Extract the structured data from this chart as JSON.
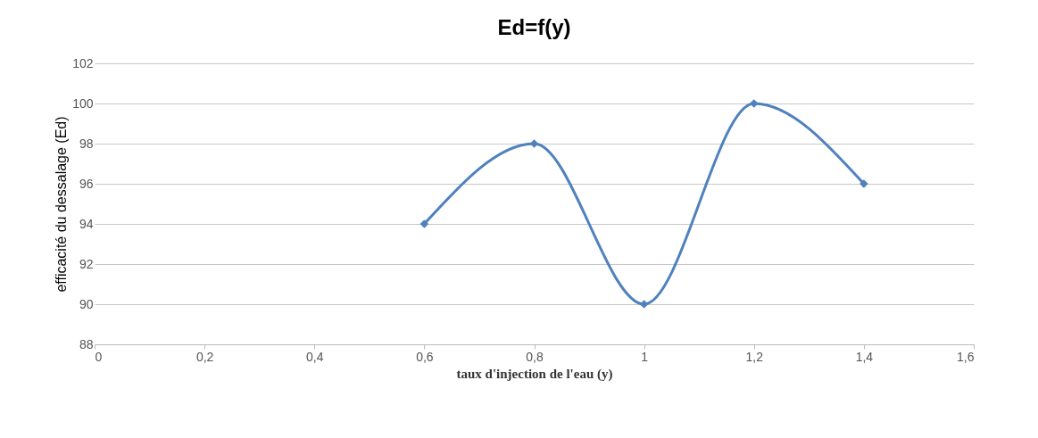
{
  "chart_data": {
    "type": "line",
    "title": "Ed=f(y)",
    "xlabel": "taux d'injection de l'eau (y)",
    "ylabel": "efficacité du dessalage (Ed)",
    "x": [
      0.6,
      0.8,
      1,
      1.2,
      1.4
    ],
    "series": [
      {
        "color": "#4f81bd",
        "values": [
          94,
          98,
          90,
          100,
          96
        ]
      }
    ],
    "xlim": [
      0,
      1.6
    ],
    "xticks": [
      0,
      {
        "value": 0.2,
        "label": "0,2"
      },
      {
        "value": 0.4,
        "label": "0,4"
      },
      {
        "value": 0.6,
        "label": "0,6"
      },
      {
        "value": 0.8,
        "label": "0,8"
      },
      1,
      {
        "value": 1.2,
        "label": "1,2"
      },
      {
        "value": 1.4,
        "label": "1,4"
      },
      {
        "value": 1.6,
        "label": "1,6"
      }
    ],
    "ylim": [
      88,
      102
    ],
    "yticks": [
      88,
      90,
      92,
      94,
      96,
      98,
      100,
      102
    ],
    "grid": "y",
    "marker": "diamond",
    "line_style": "solid"
  }
}
